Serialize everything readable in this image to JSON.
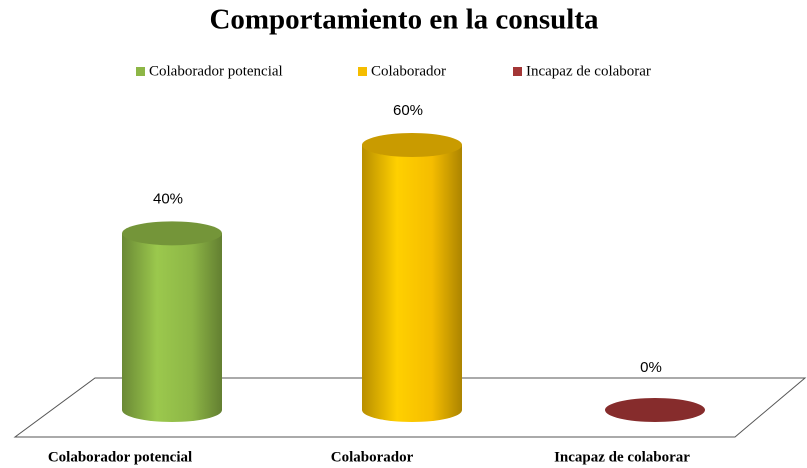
{
  "chart_data": {
    "type": "bar",
    "title": "Comportamiento en la consulta",
    "categories": [
      "Colaborador potencial",
      "Colaborador",
      "Incapaz de colaborar"
    ],
    "values": [
      40,
      60,
      0
    ],
    "value_labels": [
      "40%",
      "60%",
      "0%"
    ],
    "colors": [
      "#8db646",
      "#f5bd00",
      "#a33636"
    ],
    "legend": "top"
  }
}
